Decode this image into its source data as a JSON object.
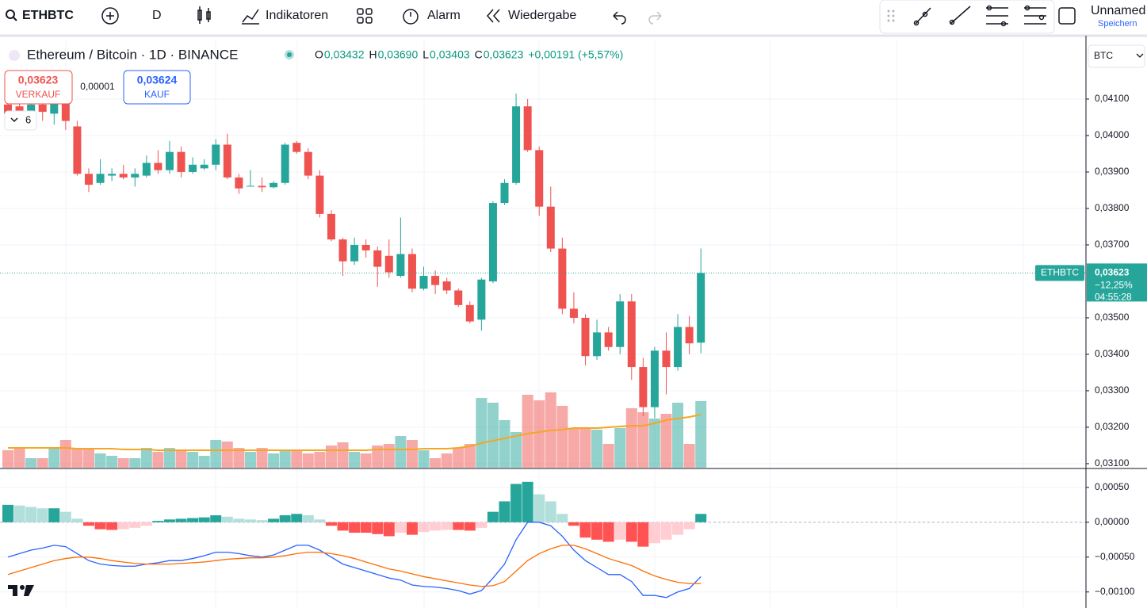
{
  "ui": {
    "symbol": "ETHBTC",
    "interval": "D",
    "indicators": "Indikatoren",
    "alert": "Alarm",
    "replay": "Wiedergabe",
    "layout_name": "Unnamed",
    "save": "Speichern"
  },
  "legend": {
    "title": "Ethereum / Bitcoin · 1D · BINANCE",
    "items": [
      {
        "label": "O",
        "value": "0,03432"
      },
      {
        "label": "H",
        "value": "0,03690"
      },
      {
        "label": "L",
        "value": "0,03403"
      },
      {
        "label": "C",
        "value": "0,03623"
      }
    ],
    "change": "+0,00191 (+5,57%)",
    "collapse_count": "6"
  },
  "trade": {
    "sell_price": "0,03623",
    "sell_label": "VERKAUF",
    "spread": "0,00001",
    "buy_price": "0,03624",
    "buy_label": "KAUF"
  },
  "axis": {
    "currency": "BTC"
  },
  "price_label": {
    "symbol": "ETHBTC",
    "price": "0,03623",
    "change": "−12,25%",
    "countdown": "04:55:28"
  },
  "chart_data": {
    "type": "candlestick",
    "up_color": "#26a69a",
    "down_color": "#ef5350",
    "grid": true,
    "open": [
      0.04085,
      0.0408,
      0.0406,
      0.04085,
      0.0406,
      0.0409,
      0.04025,
      0.03895,
      0.0387,
      0.0389,
      0.03895,
      0.03885,
      0.0389,
      0.03925,
      0.03905,
      0.03955,
      0.039,
      0.0391,
      0.0392,
      0.03975,
      0.03885,
      0.0386,
      0.03862,
      0.03858,
      0.0387,
      0.0398,
      0.03955,
      0.0389,
      0.03785,
      0.03715,
      0.03655,
      0.037,
      0.03685,
      0.0367,
      0.03615,
      0.03675,
      0.0358,
      0.03615,
      0.036,
      0.03575,
      0.03535,
      0.03495,
      0.036,
      0.03815,
      0.0387,
      0.0408,
      0.0396,
      0.03805,
      0.0369,
      0.03525,
      0.035,
      0.03395,
      0.0346,
      0.0342,
      0.03545,
      0.03365,
      0.03255,
      0.0341,
      0.03365,
      0.03475,
      0.03432
    ],
    "high": [
      0.041,
      0.04095,
      0.041,
      0.041,
      0.0411,
      0.0411,
      0.0404,
      0.0391,
      0.03935,
      0.0391,
      0.0392,
      0.0391,
      0.03945,
      0.0396,
      0.03985,
      0.0397,
      0.0394,
      0.03935,
      0.0399,
      0.04005,
      0.03895,
      0.03905,
      0.03885,
      0.03875,
      0.0398,
      0.03985,
      0.03965,
      0.03905,
      0.03795,
      0.0372,
      0.0372,
      0.03715,
      0.03695,
      0.03715,
      0.03775,
      0.0369,
      0.0364,
      0.0363,
      0.0361,
      0.0358,
      0.03545,
      0.0361,
      0.0382,
      0.0388,
      0.04115,
      0.041,
      0.0397,
      0.0386,
      0.0372,
      0.0357,
      0.0351,
      0.03495,
      0.03475,
      0.03565,
      0.03565,
      0.0339,
      0.0342,
      0.0346,
      0.0351,
      0.03505,
      0.0369
    ],
    "low": [
      0.0404,
      0.04045,
      0.0404,
      0.0404,
      0.0403,
      0.04015,
      0.0389,
      0.03845,
      0.03865,
      0.03875,
      0.0388,
      0.0386,
      0.03885,
      0.03895,
      0.03895,
      0.03885,
      0.03895,
      0.03905,
      0.03905,
      0.0388,
      0.0384,
      0.0386,
      0.03845,
      0.03855,
      0.03865,
      0.0395,
      0.0388,
      0.03775,
      0.0371,
      0.03615,
      0.03645,
      0.03665,
      0.03585,
      0.0361,
      0.0361,
      0.0357,
      0.03575,
      0.03565,
      0.03565,
      0.0353,
      0.03485,
      0.03465,
      0.03595,
      0.0381,
      0.03865,
      0.03955,
      0.0378,
      0.0368,
      0.0351,
      0.03485,
      0.0337,
      0.03385,
      0.0341,
      0.034,
      0.0333,
      0.0323,
      0.03225,
      0.0329,
      0.03355,
      0.034,
      0.03403
    ],
    "close": [
      0.0406,
      0.0406,
      0.04085,
      0.04065,
      0.0409,
      0.0404,
      0.03895,
      0.03865,
      0.03895,
      0.03895,
      0.03885,
      0.03895,
      0.03925,
      0.03905,
      0.03955,
      0.039,
      0.0392,
      0.0392,
      0.03975,
      0.03885,
      0.03855,
      0.03862,
      0.03858,
      0.0387,
      0.03975,
      0.03955,
      0.0389,
      0.03785,
      0.03715,
      0.03655,
      0.037,
      0.03685,
      0.0364,
      0.03625,
      0.03675,
      0.0358,
      0.03615,
      0.0359,
      0.03575,
      0.03535,
      0.0349,
      0.03605,
      0.03815,
      0.0387,
      0.0408,
      0.0396,
      0.03805,
      0.0369,
      0.03525,
      0.035,
      0.03395,
      0.0346,
      0.0342,
      0.03545,
      0.03365,
      0.03255,
      0.0341,
      0.03365,
      0.03475,
      0.0343,
      0.03623
    ],
    "volume": [
      22,
      25,
      12,
      12,
      25,
      35,
      25,
      25,
      18,
      15,
      12,
      12,
      25,
      20,
      25,
      22,
      20,
      15,
      35,
      33,
      25,
      20,
      25,
      18,
      22,
      22,
      18,
      20,
      28,
      32,
      20,
      18,
      28,
      30,
      40,
      35,
      22,
      12,
      18,
      25,
      30,
      88,
      82,
      60,
      45,
      92,
      85,
      95,
      78,
      50,
      50,
      48,
      30,
      50,
      75,
      70,
      62,
      68,
      82,
      30,
      84
    ],
    "volume_ma": [
      25,
      25,
      25,
      25,
      25,
      25,
      24,
      24,
      24,
      24,
      23,
      23,
      23,
      22,
      22,
      22,
      22,
      22,
      22,
      22,
      22,
      22,
      22,
      22,
      22,
      22,
      22,
      22,
      22,
      22,
      22,
      22,
      23,
      23,
      23,
      23,
      24,
      24,
      24,
      25,
      27,
      31,
      34,
      37,
      40,
      43,
      45,
      47,
      48,
      50,
      50,
      50,
      51,
      52,
      53,
      53,
      56,
      60,
      62,
      64,
      67
    ],
    "volume_ma_color": "#f5a623",
    "macd_hist": [
      0.00025,
      0.00024,
      0.00022,
      0.0002,
      0.0002,
      0.00015,
      5e-05,
      -5e-05,
      -0.0001,
      -0.00011,
      -0.0001,
      -8e-05,
      -5e-05,
      2e-05,
      4e-05,
      5e-05,
      6e-05,
      7e-05,
      0.0001,
      8e-05,
      5e-05,
      4e-05,
      3e-05,
      5e-05,
      0.0001,
      0.00012,
      0.0001,
      4e-05,
      -5e-05,
      -0.00012,
      -0.00015,
      -0.00015,
      -0.00017,
      -0.0002,
      -0.00015,
      -0.00018,
      -0.00014,
      -0.00012,
      -0.00011,
      -0.00011,
      -0.00012,
      -8e-05,
      0.00015,
      0.0003,
      0.00055,
      0.00058,
      0.0004,
      0.0003,
      0.00012,
      -5e-05,
      -0.00022,
      -0.00025,
      -0.00028,
      -0.00025,
      -0.00028,
      -0.00035,
      -0.0003,
      -0.00025,
      -0.00018,
      -0.0001,
      0.00012
    ],
    "macd": [
      -0.0005,
      -0.00045,
      -0.0004,
      -0.00037,
      -0.00033,
      -0.00035,
      -0.00045,
      -0.00055,
      -0.0006,
      -0.00062,
      -0.00063,
      -0.00063,
      -0.0006,
      -0.00058,
      -0.00055,
      -0.00055,
      -0.00052,
      -0.00048,
      -0.00043,
      -0.00043,
      -0.00045,
      -0.00048,
      -0.0005,
      -0.00047,
      -0.0004,
      -0.00033,
      -0.00033,
      -0.0004,
      -0.0005,
      -0.0006,
      -0.00065,
      -0.0007,
      -0.00075,
      -0.0008,
      -0.00083,
      -0.0009,
      -0.00092,
      -0.00093,
      -0.00095,
      -0.00098,
      -0.00103,
      -0.00098,
      -0.0008,
      -0.0006,
      -0.00025,
      0,
      0,
      -5e-05,
      -0.0002,
      -0.0004,
      -0.00055,
      -0.00065,
      -0.00075,
      -0.00075,
      -0.00085,
      -0.00105,
      -0.00105,
      -0.00108,
      -0.001,
      -0.00095,
      -0.00078
    ],
    "signal": [
      -0.00075,
      -0.0007,
      -0.00065,
      -0.0006,
      -0.00055,
      -0.00052,
      -0.0005,
      -0.0005,
      -0.00052,
      -0.00055,
      -0.00057,
      -0.00059,
      -0.0006,
      -0.0006,
      -0.0006,
      -0.00059,
      -0.00058,
      -0.00057,
      -0.00055,
      -0.00053,
      -0.00052,
      -0.00051,
      -0.00051,
      -0.0005,
      -0.00048,
      -0.00045,
      -0.00043,
      -0.00043,
      -0.00045,
      -0.00048,
      -0.00052,
      -0.00057,
      -0.00062,
      -0.00067,
      -0.0007,
      -0.00074,
      -0.00078,
      -0.00081,
      -0.00084,
      -0.00087,
      -0.0009,
      -0.00092,
      -0.00091,
      -0.00085,
      -0.0007,
      -0.00055,
      -0.00045,
      -0.00038,
      -0.00033,
      -0.00033,
      -0.00038,
      -0.00045,
      -0.00052,
      -0.00057,
      -0.00062,
      -0.0007,
      -0.00077,
      -0.00082,
      -0.00086,
      -0.00088,
      -0.00088
    ],
    "macd_color": "#2962ff",
    "signal_color": "#ff6d00",
    "ylim": [
      0.03089,
      0.04263
    ],
    "yticks": [
      {
        "value": 0.031,
        "label": "0,03100"
      },
      {
        "value": 0.032,
        "label": "0,03200"
      },
      {
        "value": 0.033,
        "label": "0,03300"
      },
      {
        "value": 0.034,
        "label": "0,03400"
      },
      {
        "value": 0.035,
        "label": "0,03500"
      },
      {
        "value": 0.037,
        "label": "0,03700"
      },
      {
        "value": 0.038,
        "label": "0,03800"
      },
      {
        "value": 0.039,
        "label": "0,03900"
      },
      {
        "value": 0.04,
        "label": "0,04000"
      },
      {
        "value": 0.041,
        "label": "0,04100"
      }
    ],
    "macd_lim": [
      -0.00123,
      0.00076
    ],
    "macd_ticks": [
      {
        "value": 0.0005,
        "label": "0,00050"
      },
      {
        "value": 0,
        "label": "0,00000"
      },
      {
        "value": -0.0005,
        "label": "−0,00050"
      },
      {
        "value": -0.001,
        "label": "−0,00100"
      }
    ]
  }
}
